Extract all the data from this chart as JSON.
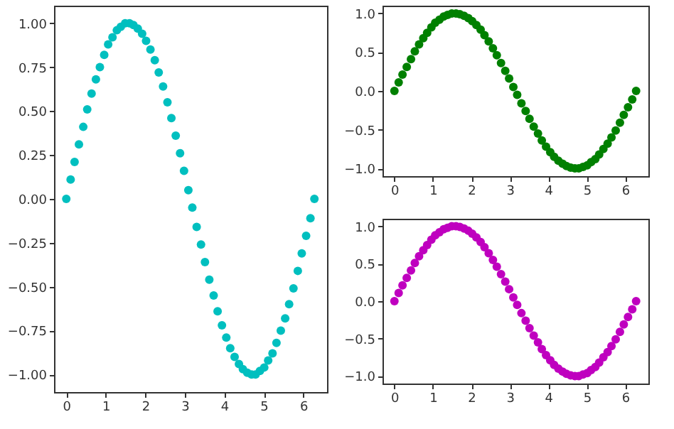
{
  "chart_data": [
    {
      "type": "scatter",
      "marker": "circle",
      "x": [
        0,
        0.11,
        0.21,
        0.32,
        0.43,
        0.53,
        0.64,
        0.75,
        0.85,
        0.96,
        1.06,
        1.17,
        1.28,
        1.38,
        1.49,
        1.6,
        1.7,
        1.81,
        1.92,
        2.02,
        2.13,
        2.24,
        2.34,
        2.45,
        2.56,
        2.66,
        2.77,
        2.88,
        2.98,
        3.09,
        3.19,
        3.3,
        3.41,
        3.51,
        3.62,
        3.73,
        3.83,
        3.94,
        4.05,
        4.15,
        4.26,
        4.37,
        4.47,
        4.58,
        4.69,
        4.79,
        4.9,
        5.01,
        5.11,
        5.22,
        5.32,
        5.43,
        5.54,
        5.64,
        5.75,
        5.86,
        5.96,
        6.07,
        6.18,
        6.28
      ],
      "series": [
        {
          "color": "#00bfbf",
          "values": [
            0,
            0.11,
            0.21,
            0.31,
            0.41,
            0.51,
            0.6,
            0.68,
            0.75,
            0.82,
            0.88,
            0.92,
            0.96,
            0.98,
            1,
            1,
            0.99,
            0.97,
            0.94,
            0.9,
            0.85,
            0.79,
            0.72,
            0.64,
            0.55,
            0.46,
            0.36,
            0.26,
            0.16,
            0.05,
            -0.05,
            -0.16,
            -0.26,
            -0.36,
            -0.46,
            -0.55,
            -0.64,
            -0.72,
            -0.79,
            -0.85,
            -0.9,
            -0.94,
            -0.97,
            -0.99,
            -1,
            -1,
            -0.98,
            -0.96,
            -0.92,
            -0.88,
            -0.82,
            -0.75,
            -0.68,
            -0.6,
            -0.51,
            -0.41,
            -0.31,
            -0.21,
            -0.11,
            0
          ]
        }
      ],
      "xlim": [
        -0.31,
        6.6
      ],
      "ylim": [
        -1.1,
        1.1
      ],
      "xticks": [
        0,
        1,
        2,
        3,
        4,
        5,
        6
      ],
      "yticks": [
        {
          "value": -1,
          "label": "−1.00"
        },
        {
          "value": -0.75,
          "label": "−0.75"
        },
        {
          "value": -0.5,
          "label": "−0.50"
        },
        {
          "value": -0.25,
          "label": "−0.25"
        },
        {
          "value": 0,
          "label": "0.00"
        },
        {
          "value": 0.25,
          "label": "0.25"
        },
        {
          "value": 0.5,
          "label": "0.50"
        },
        {
          "value": 0.75,
          "label": "0.75"
        },
        {
          "value": 1,
          "label": "1.00"
        }
      ]
    },
    {
      "type": "scatter",
      "marker": "circle",
      "x": [
        0,
        0.11,
        0.21,
        0.32,
        0.43,
        0.53,
        0.64,
        0.75,
        0.85,
        0.96,
        1.06,
        1.17,
        1.28,
        1.38,
        1.49,
        1.6,
        1.7,
        1.81,
        1.92,
        2.02,
        2.13,
        2.24,
        2.34,
        2.45,
        2.56,
        2.66,
        2.77,
        2.88,
        2.98,
        3.09,
        3.19,
        3.3,
        3.41,
        3.51,
        3.62,
        3.73,
        3.83,
        3.94,
        4.05,
        4.15,
        4.26,
        4.37,
        4.47,
        4.58,
        4.69,
        4.79,
        4.9,
        5.01,
        5.11,
        5.22,
        5.32,
        5.43,
        5.54,
        5.64,
        5.75,
        5.86,
        5.96,
        6.07,
        6.18,
        6.28
      ],
      "series": [
        {
          "color": "#008000",
          "values": [
            0,
            0.11,
            0.21,
            0.31,
            0.41,
            0.51,
            0.6,
            0.68,
            0.75,
            0.82,
            0.88,
            0.92,
            0.96,
            0.98,
            1,
            1,
            0.99,
            0.97,
            0.94,
            0.9,
            0.85,
            0.79,
            0.72,
            0.64,
            0.55,
            0.46,
            0.36,
            0.26,
            0.16,
            0.05,
            -0.05,
            -0.16,
            -0.26,
            -0.36,
            -0.46,
            -0.55,
            -0.64,
            -0.72,
            -0.79,
            -0.85,
            -0.9,
            -0.94,
            -0.97,
            -0.99,
            -1,
            -1,
            -0.98,
            -0.96,
            -0.92,
            -0.88,
            -0.82,
            -0.75,
            -0.68,
            -0.6,
            -0.51,
            -0.41,
            -0.31,
            -0.21,
            -0.11,
            0
          ]
        }
      ],
      "xlim": [
        -0.31,
        6.6
      ],
      "ylim": [
        -1.1,
        1.1
      ],
      "xticks": [
        0,
        1,
        2,
        3,
        4,
        5,
        6
      ],
      "yticks": [
        {
          "value": -1,
          "label": "−1.0"
        },
        {
          "value": -0.5,
          "label": "−0.5"
        },
        {
          "value": 0,
          "label": "0.0"
        },
        {
          "value": 0.5,
          "label": "0.5"
        },
        {
          "value": 1,
          "label": "1.0"
        }
      ]
    },
    {
      "type": "scatter",
      "marker": "circle",
      "x": [
        0,
        0.11,
        0.21,
        0.32,
        0.43,
        0.53,
        0.64,
        0.75,
        0.85,
        0.96,
        1.06,
        1.17,
        1.28,
        1.38,
        1.49,
        1.6,
        1.7,
        1.81,
        1.92,
        2.02,
        2.13,
        2.24,
        2.34,
        2.45,
        2.56,
        2.66,
        2.77,
        2.88,
        2.98,
        3.09,
        3.19,
        3.3,
        3.41,
        3.51,
        3.62,
        3.73,
        3.83,
        3.94,
        4.05,
        4.15,
        4.26,
        4.37,
        4.47,
        4.58,
        4.69,
        4.79,
        4.9,
        5.01,
        5.11,
        5.22,
        5.32,
        5.43,
        5.54,
        5.64,
        5.75,
        5.86,
        5.96,
        6.07,
        6.18,
        6.28
      ],
      "series": [
        {
          "color": "#bf00bf",
          "values": [
            0,
            0.11,
            0.21,
            0.31,
            0.41,
            0.51,
            0.6,
            0.68,
            0.75,
            0.82,
            0.88,
            0.92,
            0.96,
            0.98,
            1,
            1,
            0.99,
            0.97,
            0.94,
            0.9,
            0.85,
            0.79,
            0.72,
            0.64,
            0.55,
            0.46,
            0.36,
            0.26,
            0.16,
            0.05,
            -0.05,
            -0.16,
            -0.26,
            -0.36,
            -0.46,
            -0.55,
            -0.64,
            -0.72,
            -0.79,
            -0.85,
            -0.9,
            -0.94,
            -0.97,
            -0.99,
            -1,
            -1,
            -0.98,
            -0.96,
            -0.92,
            -0.88,
            -0.82,
            -0.75,
            -0.68,
            -0.6,
            -0.51,
            -0.41,
            -0.31,
            -0.21,
            -0.11,
            0
          ]
        }
      ],
      "xlim": [
        -0.31,
        6.6
      ],
      "ylim": [
        -1.1,
        1.1
      ],
      "xticks": [
        0,
        1,
        2,
        3,
        4,
        5,
        6
      ],
      "yticks": [
        {
          "value": -1,
          "label": "−1.0"
        },
        {
          "value": -0.5,
          "label": "−0.5"
        },
        {
          "value": 0,
          "label": "0.0"
        },
        {
          "value": 0.5,
          "label": "0.5"
        },
        {
          "value": 1,
          "label": "1.0"
        }
      ]
    }
  ]
}
